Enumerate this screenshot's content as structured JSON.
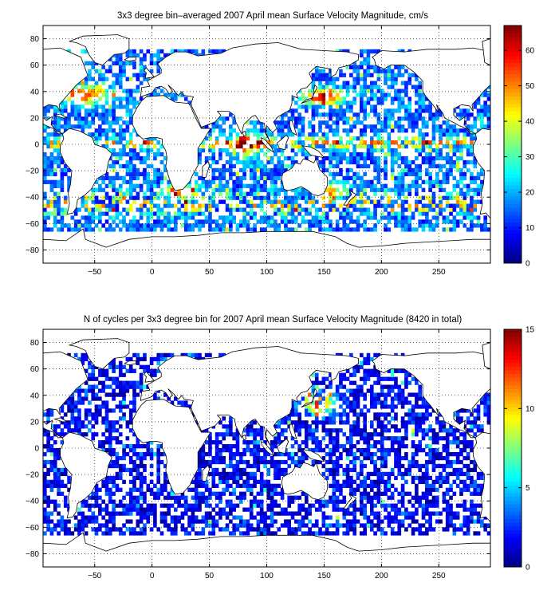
{
  "figure": {
    "background": "#ffffff",
    "colormap": "jet"
  },
  "chart_data": [
    {
      "type": "heatmap",
      "title": "3x3 degree bin–averaged 2007 April mean Surface Velocity Magnitude, cm/s",
      "xlabel": "",
      "ylabel": "",
      "xlim": [
        -95,
        295
      ],
      "ylim": [
        -90,
        90
      ],
      "bin_size_deg": 3,
      "x_ticks": [
        -50,
        0,
        50,
        100,
        150,
        200,
        250
      ],
      "y_ticks": [
        -80,
        -60,
        -40,
        -20,
        0,
        20,
        40,
        60,
        80
      ],
      "x_tick_labels": [
        "−50",
        "0",
        "50",
        "100",
        "150",
        "200",
        "250"
      ],
      "y_tick_labels": [
        "−80",
        "−60",
        "−40",
        "−20",
        "0",
        "20",
        "40",
        "60",
        "80"
      ],
      "grid": true,
      "grid_style": "dotted",
      "colorbar": {
        "position": "right",
        "min": 0,
        "max": 67,
        "ticks": [
          0,
          10,
          20,
          30,
          40,
          50,
          60
        ],
        "tick_labels": [
          "0",
          "10",
          "20",
          "30",
          "40",
          "50",
          "60"
        ]
      },
      "value_summary": {
        "typical": 15,
        "high_currents": 60
      }
    },
    {
      "type": "heatmap",
      "title": "N of cycles per 3x3 degree bin for 2007 April mean Surface Velocity Magnitude (8420 in total)",
      "xlabel": "",
      "ylabel": "",
      "xlim": [
        -95,
        295
      ],
      "ylim": [
        -90,
        90
      ],
      "bin_size_deg": 3,
      "total_cycles": 8420,
      "x_ticks": [
        -50,
        0,
        50,
        100,
        150,
        200,
        250
      ],
      "y_ticks": [
        -80,
        -60,
        -40,
        -20,
        0,
        20,
        40,
        60,
        80
      ],
      "x_tick_labels": [
        "−50",
        "0",
        "50",
        "100",
        "150",
        "200",
        "250"
      ],
      "y_tick_labels": [
        "−80",
        "−60",
        "−40",
        "−20",
        "0",
        "20",
        "40",
        "60",
        "80"
      ],
      "grid": true,
      "grid_style": "dotted",
      "colorbar": {
        "position": "right",
        "min": 0,
        "max": 15,
        "ticks": [
          0,
          5,
          10,
          15
        ],
        "tick_labels": [
          "0",
          "5",
          "10",
          "15"
        ]
      },
      "value_summary": {
        "typical": 2,
        "high_density": 15
      }
    }
  ]
}
